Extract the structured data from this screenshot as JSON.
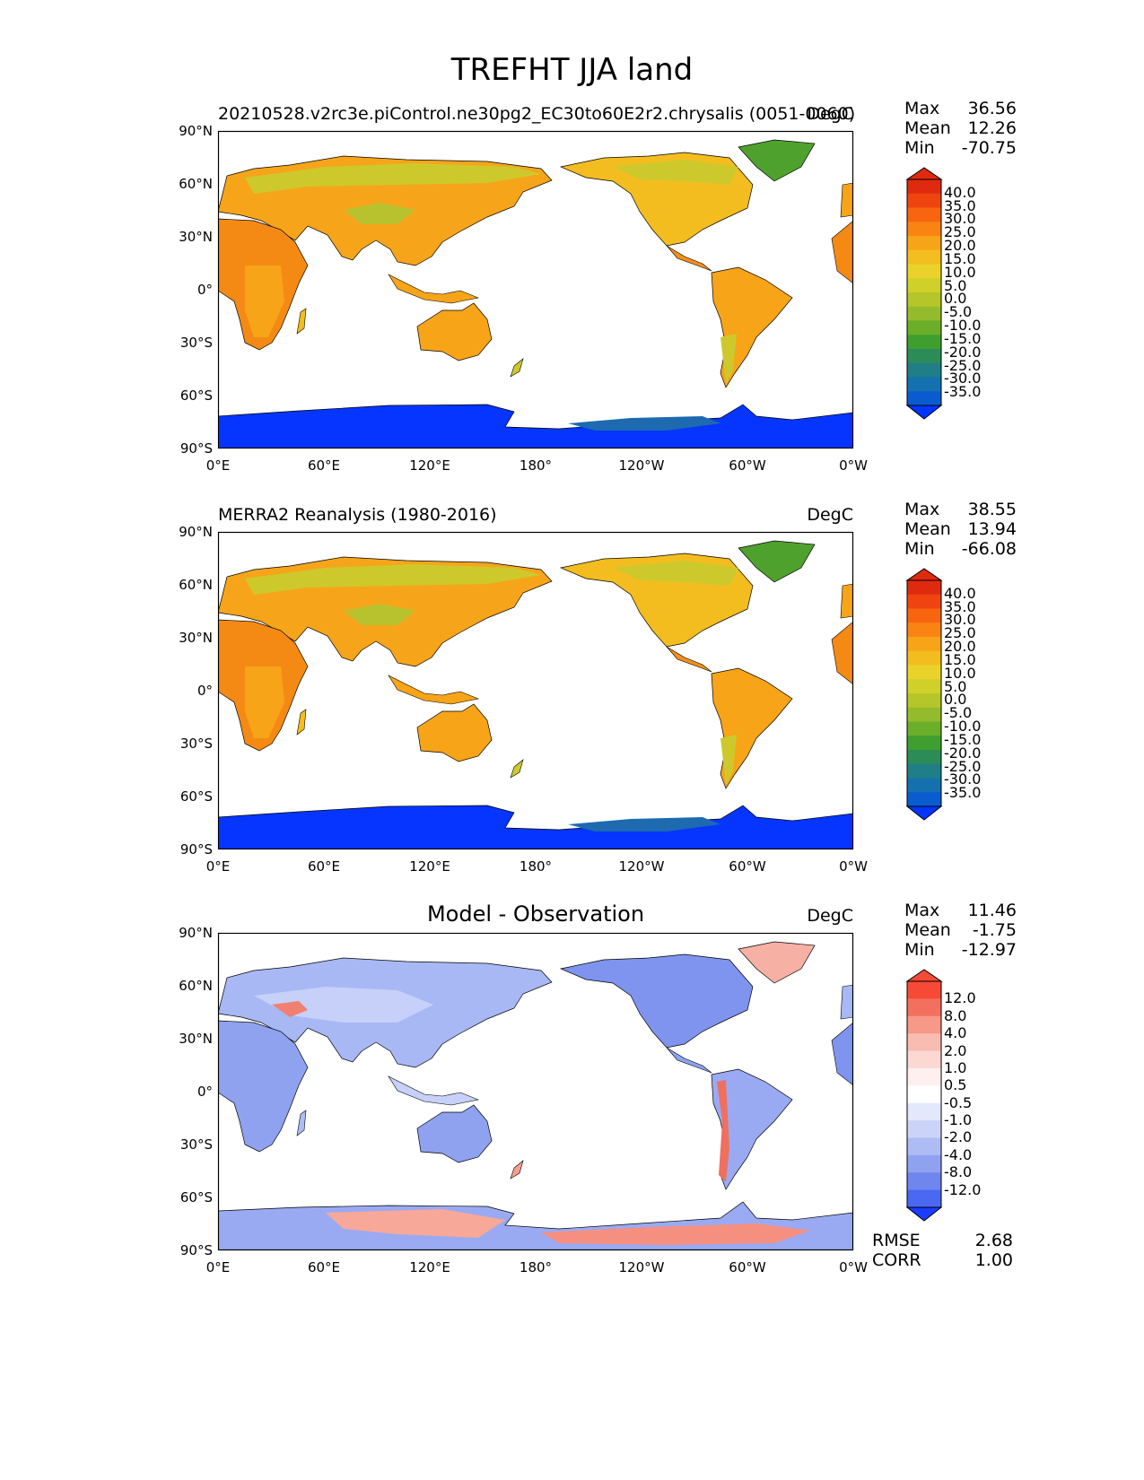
{
  "figure_title": "TREFHT JJA land",
  "xticks": [
    "0°E",
    "60°E",
    "120°E",
    "180°",
    "120°W",
    "60°W",
    "0°W"
  ],
  "yticks": [
    "90°N",
    "60°N",
    "30°N",
    "0°",
    "30°S",
    "60°S",
    "90°S"
  ],
  "panels": [
    {
      "title_left": "20210528.v2rc3e.piControl.ne30pg2_EC30to60E2r2.chrysalis (0051-0060)",
      "title_center": "",
      "units": "DegC",
      "stats": {
        "max_label": "Max",
        "max": "36.56",
        "mean_label": "Mean",
        "mean": "12.26",
        "min_label": "Min",
        "min": "-70.75"
      },
      "colorbar": {
        "labels": [
          "40.0",
          "35.0",
          "30.0",
          "25.0",
          "20.0",
          "15.0",
          "10.0",
          "5.0",
          "0.0",
          "-5.0",
          "-10.0",
          "-15.0",
          "-20.0",
          "-25.0",
          "-30.0",
          "-35.0"
        ],
        "colors": [
          "#f0e020",
          "#e02a10",
          "#f04410",
          "#f86410",
          "#fa8412",
          "#f7a418",
          "#f3bd1f",
          "#ead22a",
          "#cfd02a",
          "#b5c62a",
          "#93bb2b",
          "#6aae2a",
          "#3f9f2e",
          "#2c8c58",
          "#207e86",
          "#1570b0",
          "#0a5bd0",
          "#0035ff"
        ]
      },
      "rmse": null
    },
    {
      "title_left": "MERRA2 Reanalysis (1980-2016)",
      "title_center": "",
      "units": "DegC",
      "stats": {
        "max_label": "Max",
        "max": "38.55",
        "mean_label": "Mean",
        "mean": "13.94",
        "min_label": "Min",
        "min": "-66.08"
      },
      "colorbar": {
        "labels": [
          "40.0",
          "35.0",
          "30.0",
          "25.0",
          "20.0",
          "15.0",
          "10.0",
          "5.0",
          "0.0",
          "-5.0",
          "-10.0",
          "-15.0",
          "-20.0",
          "-25.0",
          "-30.0",
          "-35.0"
        ],
        "colors": [
          "#f0e020",
          "#e02a10",
          "#f04410",
          "#f86410",
          "#fa8412",
          "#f7a418",
          "#f3bd1f",
          "#ead22a",
          "#cfd02a",
          "#b5c62a",
          "#93bb2b",
          "#6aae2a",
          "#3f9f2e",
          "#2c8c58",
          "#207e86",
          "#1570b0",
          "#0a5bd0",
          "#0035ff"
        ]
      },
      "rmse": null
    },
    {
      "title_left": "",
      "title_center": "Model - Observation",
      "units": "DegC",
      "stats": {
        "max_label": "Max",
        "max": "11.46",
        "mean_label": "Mean",
        "mean": "-1.75",
        "min_label": "Min",
        "min": "-12.97"
      },
      "colorbar": {
        "labels": [
          "12.0",
          "8.0",
          "4.0",
          "2.0",
          "1.0",
          "0.5",
          "-0.5",
          "-1.0",
          "-2.0",
          "-4.0",
          "-8.0",
          "-12.0"
        ],
        "colors": [
          "#ff2a10",
          "#f64a36",
          "#f4705e",
          "#f79888",
          "#f9bcb0",
          "#fbd8d2",
          "#fdf0ee",
          "#ffffff",
          "#e4e8fc",
          "#cbd4f8",
          "#aebcf4",
          "#8fa2f0",
          "#6e86ee",
          "#4b68f2",
          "#1c3cff"
        ]
      },
      "rmse": {
        "rmse_label": "RMSE",
        "rmse": "2.68",
        "corr_label": "CORR",
        "corr": "1.00"
      }
    }
  ]
}
